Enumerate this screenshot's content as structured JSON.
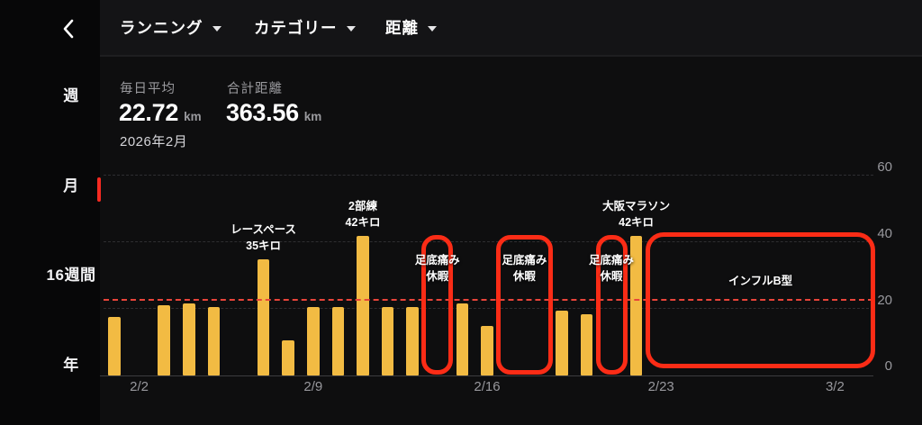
{
  "topbar": {
    "menus": [
      {
        "label": "ランニング"
      },
      {
        "label": "カテゴリー"
      },
      {
        "label": "距離"
      }
    ]
  },
  "sidebar": {
    "items": [
      {
        "label": "週",
        "active": false
      },
      {
        "label": "月",
        "active": true
      },
      {
        "label": "16週間",
        "active": false
      },
      {
        "label": "年",
        "active": false
      }
    ]
  },
  "stats": {
    "daily_avg_label": "毎日平均",
    "daily_avg_value": "22.72",
    "daily_avg_unit": "km",
    "total_label": "合計距離",
    "total_value": "363.56",
    "total_unit": "km",
    "period": "2026年2月"
  },
  "colors": {
    "bar": "#f2bb43",
    "highlight_red": "#fb2c16",
    "avg_line_red": "#e8443a",
    "active_tab_red": "#f52a21",
    "axis_text": "#98989d"
  },
  "chart_data": {
    "type": "bar",
    "title": "",
    "ylabel": "km",
    "ylim": [
      0,
      60
    ],
    "y_ticks": [
      0,
      20,
      40,
      60
    ],
    "average_line": 22.72,
    "grid": true,
    "x_ticks": [
      {
        "day_index": 1,
        "label": "2/2"
      },
      {
        "day_index": 8,
        "label": "2/9"
      },
      {
        "day_index": 15,
        "label": "2/16"
      },
      {
        "day_index": 22,
        "label": "2/23"
      },
      {
        "day_index": 29,
        "label": "3/2"
      }
    ],
    "points": [
      {
        "date": "2/1",
        "day_index": 0,
        "value": 17.5
      },
      {
        "date": "2/3",
        "day_index": 2,
        "value": 21
      },
      {
        "date": "2/4",
        "day_index": 3,
        "value": 21.5
      },
      {
        "date": "2/5",
        "day_index": 4,
        "value": 20.5
      },
      {
        "date": "2/7",
        "day_index": 6,
        "value": 35
      },
      {
        "date": "2/8",
        "day_index": 7,
        "value": 10.5
      },
      {
        "date": "2/9",
        "day_index": 8,
        "value": 20.5
      },
      {
        "date": "2/10",
        "day_index": 9,
        "value": 20.5
      },
      {
        "date": "2/11",
        "day_index": 10,
        "value": 42
      },
      {
        "date": "2/12",
        "day_index": 11,
        "value": 20.5
      },
      {
        "date": "2/13",
        "day_index": 12,
        "value": 20.5
      },
      {
        "date": "2/15",
        "day_index": 14,
        "value": 21.5
      },
      {
        "date": "2/16",
        "day_index": 15,
        "value": 15
      },
      {
        "date": "2/19",
        "day_index": 18,
        "value": 19.5
      },
      {
        "date": "2/20",
        "day_index": 19,
        "value": 18.5
      },
      {
        "date": "2/22",
        "day_index": 21,
        "value": 42
      }
    ],
    "bar_annotations": [
      {
        "day_index": 6,
        "lines": [
          "レースペース",
          "35キロ"
        ]
      },
      {
        "day_index": 10,
        "lines": [
          "2部練",
          "42キロ"
        ]
      },
      {
        "day_index": 21,
        "lines": [
          "大阪マラソン",
          "42キロ"
        ]
      }
    ],
    "highlight_boxes": [
      {
        "start_day": 13,
        "end_day": 13,
        "lines": [
          "足底痛み",
          "休暇"
        ],
        "tall": false
      },
      {
        "start_day": 16,
        "end_day": 17,
        "lines": [
          "足底痛み",
          "休暇"
        ],
        "tall": false
      },
      {
        "start_day": 20,
        "end_day": 20,
        "lines": [
          "足底痛み",
          "休暇"
        ],
        "tall": false
      },
      {
        "start_day": 22,
        "end_day": 30,
        "lines": [
          "インフルB型"
        ],
        "tall": true
      }
    ]
  }
}
